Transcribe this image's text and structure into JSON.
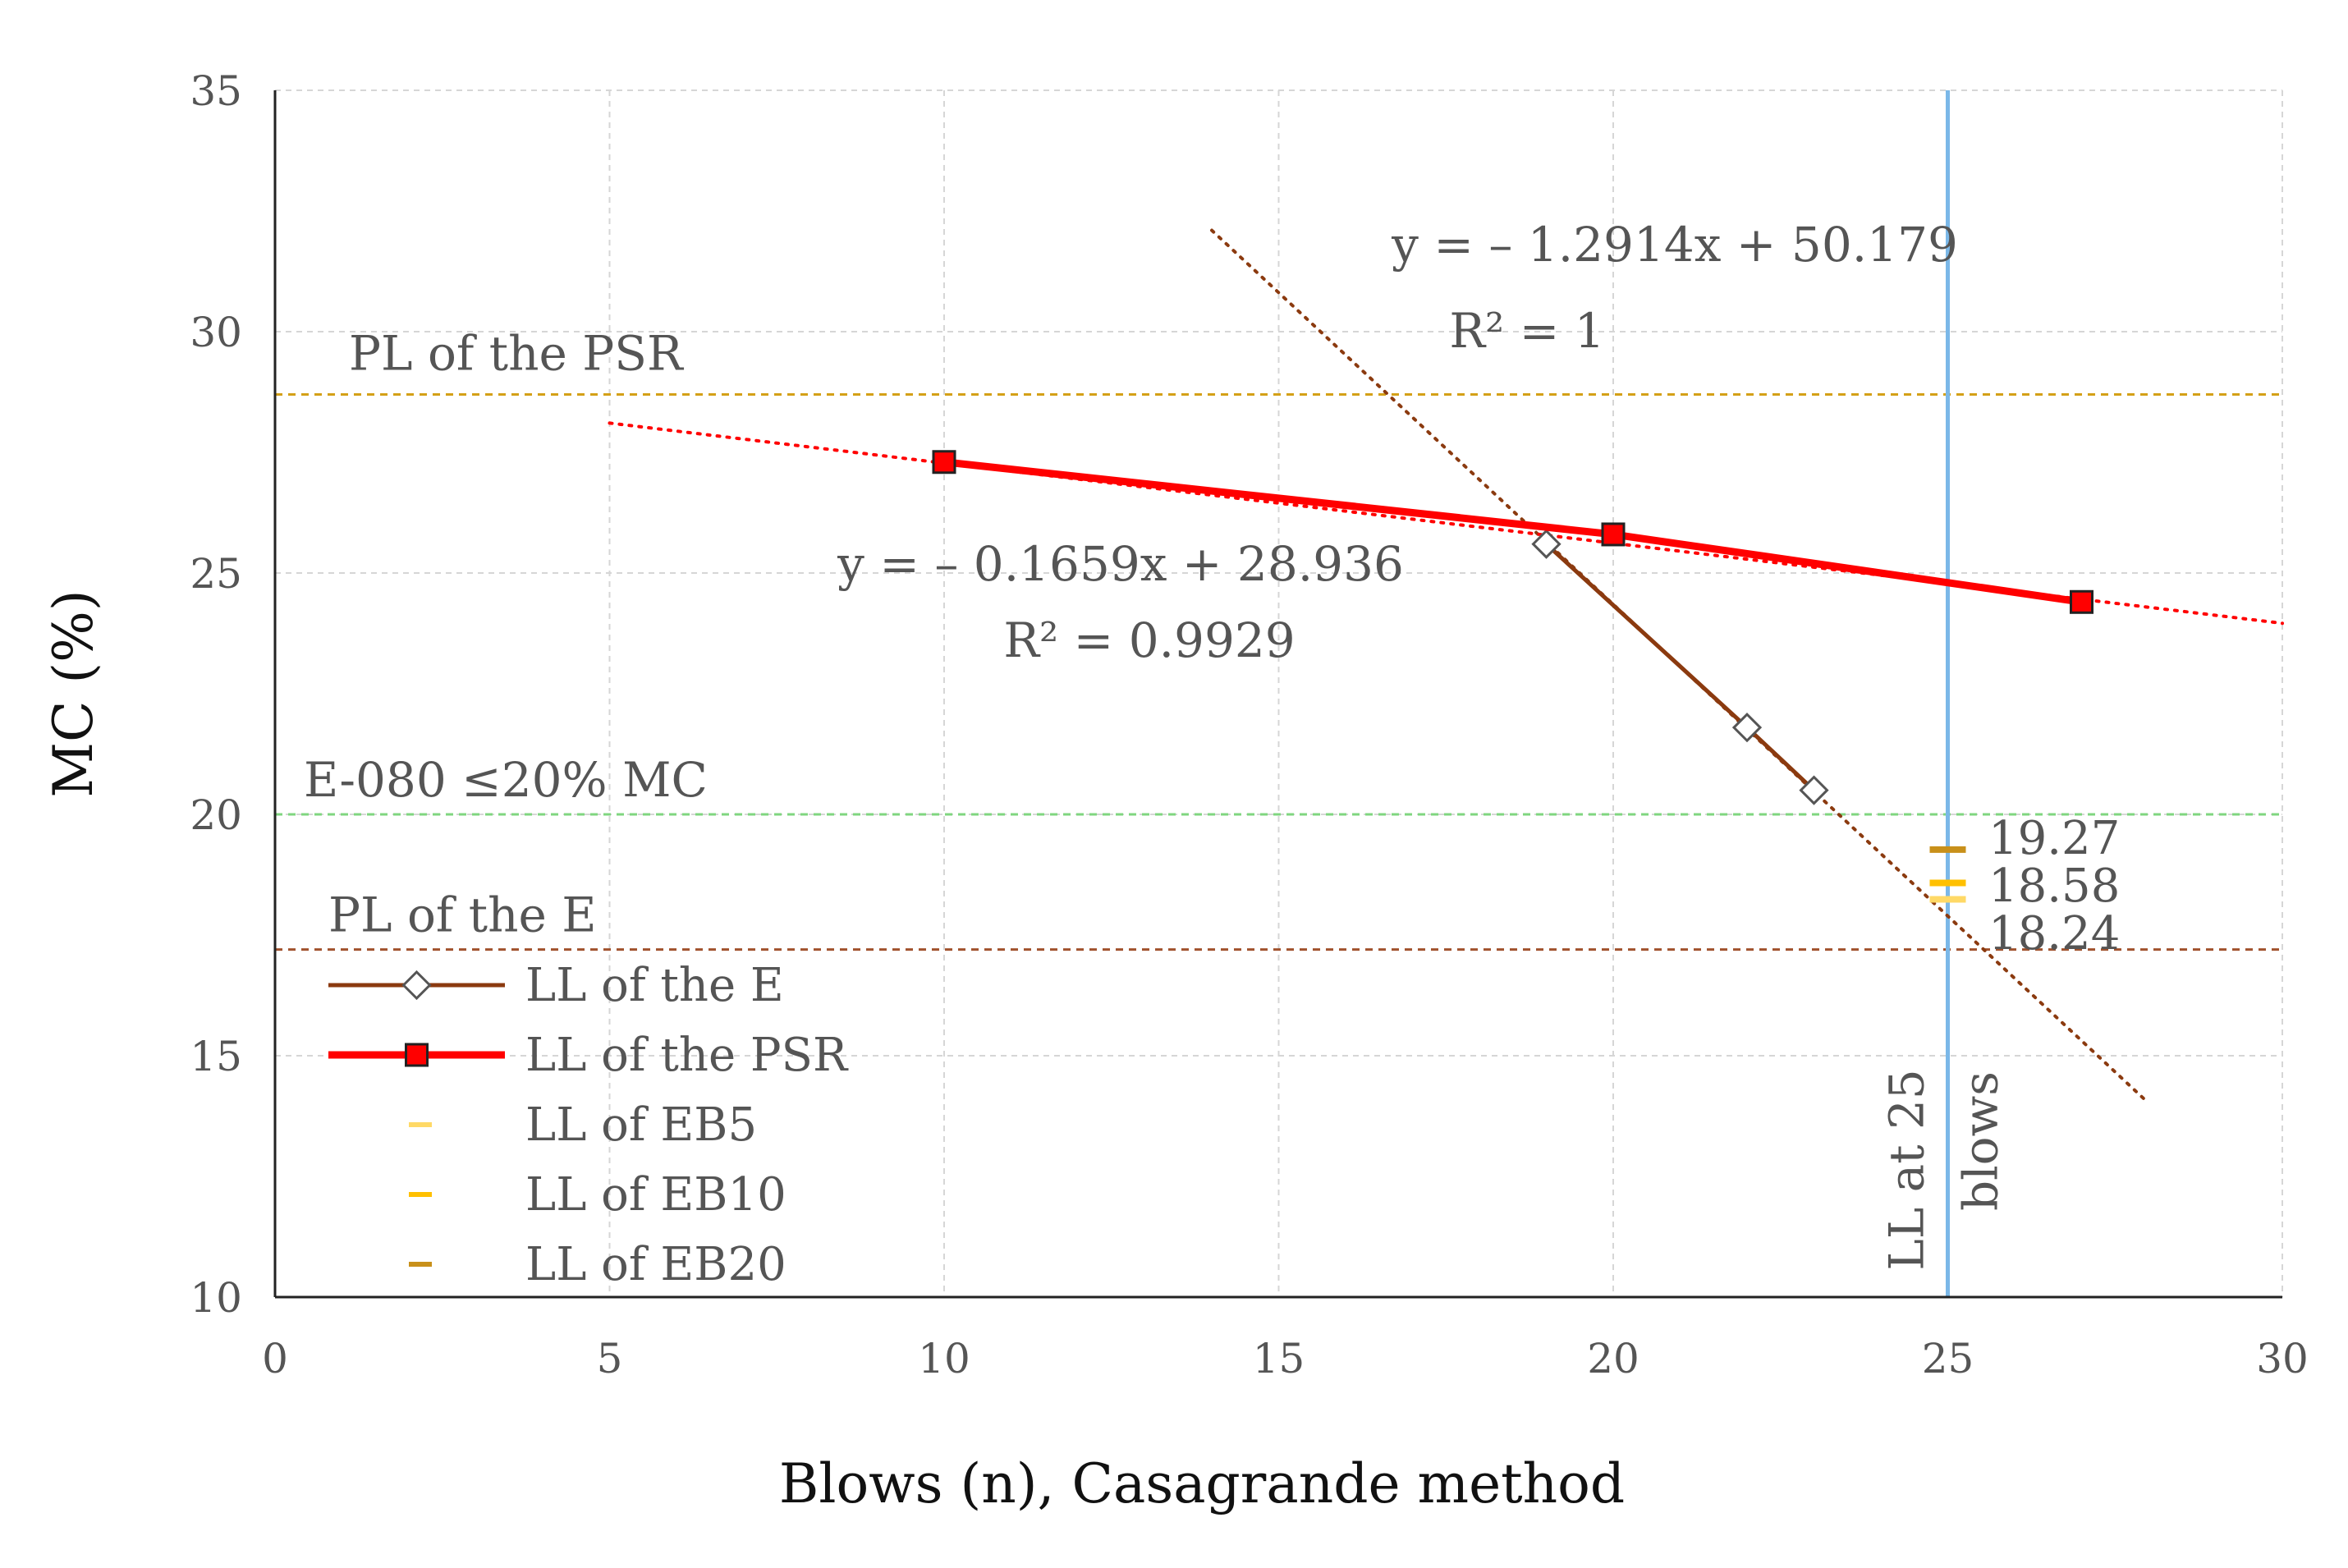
{
  "chart_data": {
    "type": "line",
    "title": "",
    "xlabel": "Blows (n), Casagrande method",
    "ylabel": "MC (%)",
    "xlim": [
      0,
      30
    ],
    "ylim": [
      10,
      35
    ],
    "xticks": [
      0,
      5,
      10,
      15,
      20,
      25,
      30
    ],
    "yticks": [
      10,
      15,
      20,
      25,
      30,
      35
    ],
    "grid": true,
    "legend_position": "bottom-left",
    "series": [
      {
        "name": "LL of the E",
        "color": "#8B3A0F",
        "marker": "diamond",
        "points": [
          [
            19,
            25.6
          ],
          [
            22,
            21.8
          ],
          [
            23,
            20.5
          ]
        ],
        "trendline": {
          "slope": -1.2914,
          "intercept": 50.179,
          "x_range": [
            14,
            28
          ],
          "equation": "y = – 1.2914x + 50.179",
          "r2": "R² = 1"
        }
      },
      {
        "name": "LL of the PSR",
        "color": "#FF0000",
        "marker": "square",
        "points": [
          [
            10,
            27.3
          ],
          [
            20,
            25.8
          ],
          [
            27,
            24.4
          ]
        ],
        "trendline": {
          "slope": -0.1659,
          "intercept": 28.936,
          "x_range": [
            5,
            30
          ],
          "equation": "y = – 0.1659x + 28.936",
          "r2": "R² = 0.9929"
        }
      },
      {
        "name": "LL of EB5",
        "color": "#FFD966",
        "marker": "dash",
        "points": [
          [
            25,
            18.24
          ]
        ],
        "value_label": "18.24"
      },
      {
        "name": "LL of EB10",
        "color": "#FFC000",
        "marker": "dash",
        "points": [
          [
            25,
            18.58
          ]
        ],
        "value_label": "18.58"
      },
      {
        "name": "LL of EB20",
        "color": "#C8901A",
        "marker": "dash",
        "points": [
          [
            25,
            19.27
          ]
        ],
        "value_label": "19.27"
      }
    ],
    "reference_lines": [
      {
        "orientation": "horizontal",
        "value": 28.7,
        "label": "PL of the PSR",
        "color": "#D4A017"
      },
      {
        "orientation": "horizontal",
        "value": 20,
        "label": "E-080 ≤20% MC",
        "color": "#7FD67F"
      },
      {
        "orientation": "horizontal",
        "value": 17.2,
        "label": "PL of the E",
        "color": "#A0522D"
      },
      {
        "orientation": "vertical",
        "value": 25,
        "label_line1": "LL at 25",
        "label_line2": "blows",
        "color": "#7BB8E8"
      }
    ]
  }
}
